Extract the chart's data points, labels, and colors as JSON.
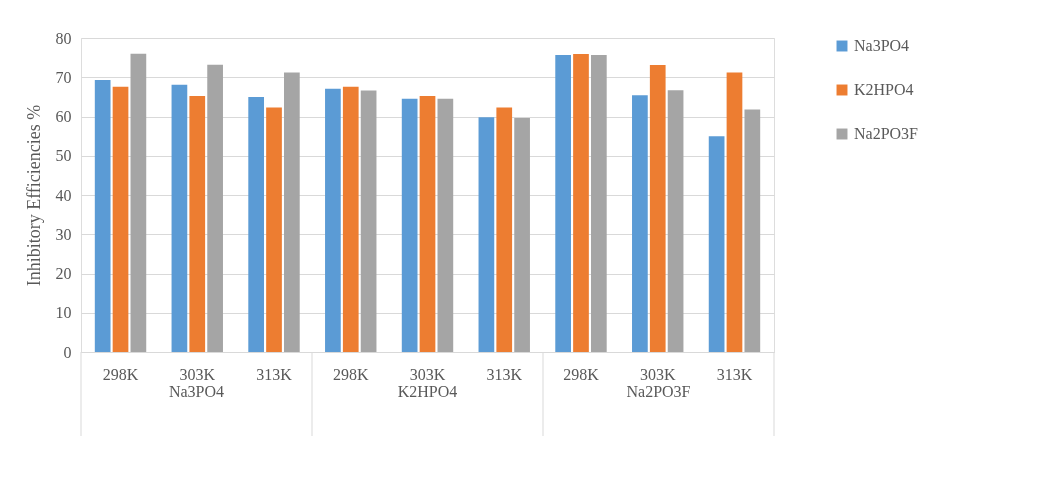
{
  "chart_data": {
    "type": "bar",
    "ylabel": "Inhibitory Efficiencies %",
    "categories": [
      "298K",
      "303K",
      "313K",
      "298K",
      "303K",
      "313K",
      "298K",
      "303K",
      "313K"
    ],
    "annotations": [
      "Na3PO4",
      "K2HPO4",
      "Na2PO3F"
    ],
    "series": [
      {
        "name": "Na3PO4",
        "color": "#5b9bd5",
        "values": [
          69.3,
          68.1,
          65.0,
          67.1,
          64.5,
          59.8,
          75.7,
          65.4,
          55.0
        ]
      },
      {
        "name": "K2HPO4",
        "color": "#ed7d31",
        "values": [
          67.6,
          65.2,
          62.3,
          67.6,
          65.2,
          62.3,
          75.9,
          73.1,
          71.2
        ]
      },
      {
        "name": "Na2PO3F",
        "color": "#a5a5a5",
        "values": [
          76.0,
          73.2,
          71.2,
          66.6,
          64.5,
          59.6,
          75.7,
          66.7,
          61.8
        ]
      }
    ],
    "ylim": [
      0,
      80
    ],
    "yticks": [
      0,
      10,
      20,
      30,
      40,
      50,
      60,
      70,
      80
    ],
    "grid": "y",
    "legend": "right"
  }
}
